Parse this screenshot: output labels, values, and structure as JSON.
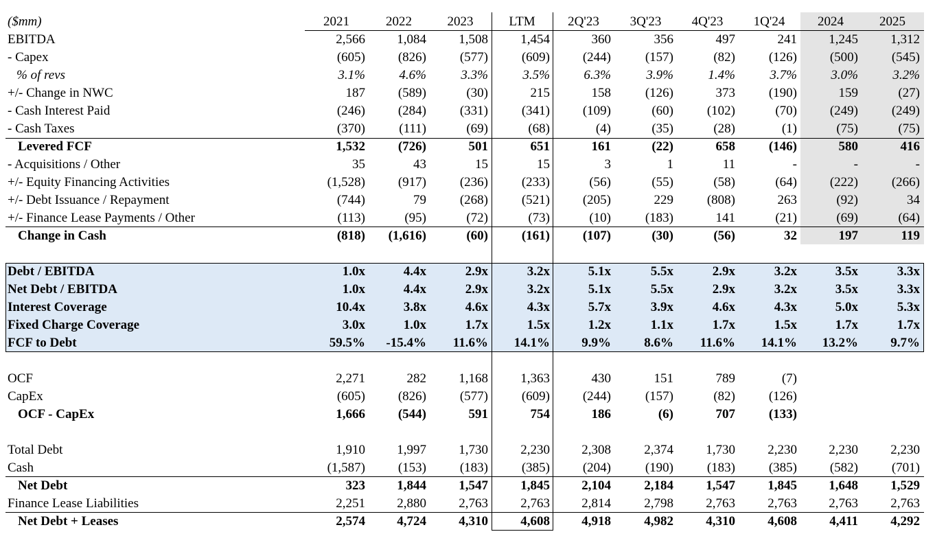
{
  "header": {
    "units_label": "($mm)",
    "columns": [
      "2021",
      "2022",
      "2023",
      "LTM",
      "2Q'23",
      "3Q'23",
      "4Q'23",
      "1Q'24",
      "2024",
      "2025"
    ]
  },
  "rows": [
    {
      "id": "ebitda",
      "label": "EBITDA",
      "values": [
        "2,566",
        "1,084",
        "1,508",
        "1,454",
        "360",
        "356",
        "497",
        "241",
        "1,245",
        "1,312"
      ]
    },
    {
      "id": "capex",
      "label": "- Capex",
      "values": [
        "(605)",
        "(826)",
        "(577)",
        "(609)",
        "(244)",
        "(157)",
        "(82)",
        "(126)",
        "(500)",
        "(545)"
      ]
    },
    {
      "id": "pct-revs",
      "label": "% of revs",
      "values": [
        "3.1%",
        "4.6%",
        "3.3%",
        "3.5%",
        "6.3%",
        "3.9%",
        "1.4%",
        "3.7%",
        "3.0%",
        "3.2%"
      ]
    },
    {
      "id": "nwc",
      "label": "+/- Change in NWC",
      "values": [
        "187",
        "(589)",
        "(30)",
        "215",
        "158",
        "(126)",
        "373",
        "(190)",
        "159",
        "(27)"
      ]
    },
    {
      "id": "cash-interest",
      "label": "- Cash Interest Paid",
      "values": [
        "(246)",
        "(284)",
        "(331)",
        "(341)",
        "(109)",
        "(60)",
        "(102)",
        "(70)",
        "(249)",
        "(249)"
      ]
    },
    {
      "id": "cash-taxes",
      "label": "- Cash Taxes",
      "values": [
        "(370)",
        "(111)",
        "(69)",
        "(68)",
        "(4)",
        "(35)",
        "(28)",
        "(1)",
        "(75)",
        "(75)"
      ]
    },
    {
      "id": "levered-fcf",
      "label": "Levered FCF",
      "values": [
        "1,532",
        "(726)",
        "501",
        "651",
        "161",
        "(22)",
        "658",
        "(146)",
        "580",
        "416"
      ]
    },
    {
      "id": "acquisitions",
      "label": "- Acquisitions / Other",
      "values": [
        "35",
        "43",
        "15",
        "15",
        "3",
        "1",
        "11",
        "-",
        "-",
        "-"
      ]
    },
    {
      "id": "equity-fin",
      "label": "+/- Equity Financing Activities",
      "values": [
        "(1,528)",
        "(917)",
        "(236)",
        "(233)",
        "(56)",
        "(55)",
        "(58)",
        "(64)",
        "(222)",
        "(266)"
      ]
    },
    {
      "id": "debt-issuance",
      "label": "+/- Debt Issuance / Repayment",
      "values": [
        "(744)",
        "79",
        "(268)",
        "(521)",
        "(205)",
        "229",
        "(808)",
        "263",
        "(92)",
        "34"
      ]
    },
    {
      "id": "finance-lease",
      "label": "+/- Finance Lease Payments / Other",
      "values": [
        "(113)",
        "(95)",
        "(72)",
        "(73)",
        "(10)",
        "(183)",
        "141",
        "(21)",
        "(69)",
        "(64)"
      ]
    },
    {
      "id": "change-cash",
      "label": "Change in Cash",
      "values": [
        "(818)",
        "(1,616)",
        "(60)",
        "(161)",
        "(107)",
        "(30)",
        "(56)",
        "32",
        "197",
        "119"
      ]
    },
    {
      "id": "debt-ebitda",
      "label": "Debt / EBITDA",
      "values": [
        "1.0x",
        "4.4x",
        "2.9x",
        "3.2x",
        "5.1x",
        "5.5x",
        "2.9x",
        "3.2x",
        "3.5x",
        "3.3x"
      ]
    },
    {
      "id": "net-debt-ebitda",
      "label": "Net Debt / EBITDA",
      "values": [
        "1.0x",
        "4.4x",
        "2.9x",
        "3.2x",
        "5.1x",
        "5.5x",
        "2.9x",
        "3.2x",
        "3.5x",
        "3.3x"
      ]
    },
    {
      "id": "interest-cov",
      "label": "Interest Coverage",
      "values": [
        "10.4x",
        "3.8x",
        "4.6x",
        "4.3x",
        "5.7x",
        "3.9x",
        "4.6x",
        "4.3x",
        "5.0x",
        "5.3x"
      ]
    },
    {
      "id": "fixed-charge-cov",
      "label": "Fixed Charge Coverage",
      "values": [
        "3.0x",
        "1.0x",
        "1.7x",
        "1.5x",
        "1.2x",
        "1.1x",
        "1.7x",
        "1.5x",
        "1.7x",
        "1.7x"
      ]
    },
    {
      "id": "fcf-debt",
      "label": "FCF to Debt",
      "values": [
        "59.5%",
        "-15.4%",
        "11.6%",
        "14.1%",
        "9.9%",
        "8.6%",
        "11.6%",
        "14.1%",
        "13.2%",
        "9.7%"
      ]
    },
    {
      "id": "ocf",
      "label": "OCF",
      "values": [
        "2,271",
        "282",
        "1,168",
        "1,363",
        "430",
        "151",
        "789",
        "(7)",
        "",
        ""
      ]
    },
    {
      "id": "capex2",
      "label": "CapEx",
      "values": [
        "(605)",
        "(826)",
        "(577)",
        "(609)",
        "(244)",
        "(157)",
        "(82)",
        "(126)",
        "",
        ""
      ]
    },
    {
      "id": "ocf-capex",
      "label": "OCF - CapEx",
      "values": [
        "1,666",
        "(544)",
        "591",
        "754",
        "186",
        "(6)",
        "707",
        "(133)",
        "",
        ""
      ]
    },
    {
      "id": "total-debt",
      "label": "Total Debt",
      "values": [
        "1,910",
        "1,997",
        "1,730",
        "2,230",
        "2,308",
        "2,374",
        "1,730",
        "2,230",
        "2,230",
        "2,230"
      ]
    },
    {
      "id": "cash",
      "label": "Cash",
      "values": [
        "(1,587)",
        "(153)",
        "(183)",
        "(385)",
        "(204)",
        "(190)",
        "(183)",
        "(385)",
        "(582)",
        "(701)"
      ]
    },
    {
      "id": "net-debt",
      "label": "Net Debt",
      "values": [
        "323",
        "1,844",
        "1,547",
        "1,845",
        "2,104",
        "2,184",
        "1,547",
        "1,845",
        "1,648",
        "1,529"
      ]
    },
    {
      "id": "fin-lease-liab",
      "label": "Finance Lease Liabilities",
      "values": [
        "2,251",
        "2,880",
        "2,763",
        "2,763",
        "2,814",
        "2,798",
        "2,763",
        "2,763",
        "2,763",
        "2,763"
      ]
    },
    {
      "id": "net-debt-leases",
      "label": "Net Debt + Leases",
      "values": [
        "2,574",
        "4,724",
        "4,310",
        "4,608",
        "4,918",
        "4,982",
        "4,310",
        "4,608",
        "4,411",
        "4,292"
      ]
    }
  ],
  "colors": {
    "ratio_fill": "#dde9f6",
    "projection_fill": "#e4e4e4",
    "text": "#000000"
  }
}
